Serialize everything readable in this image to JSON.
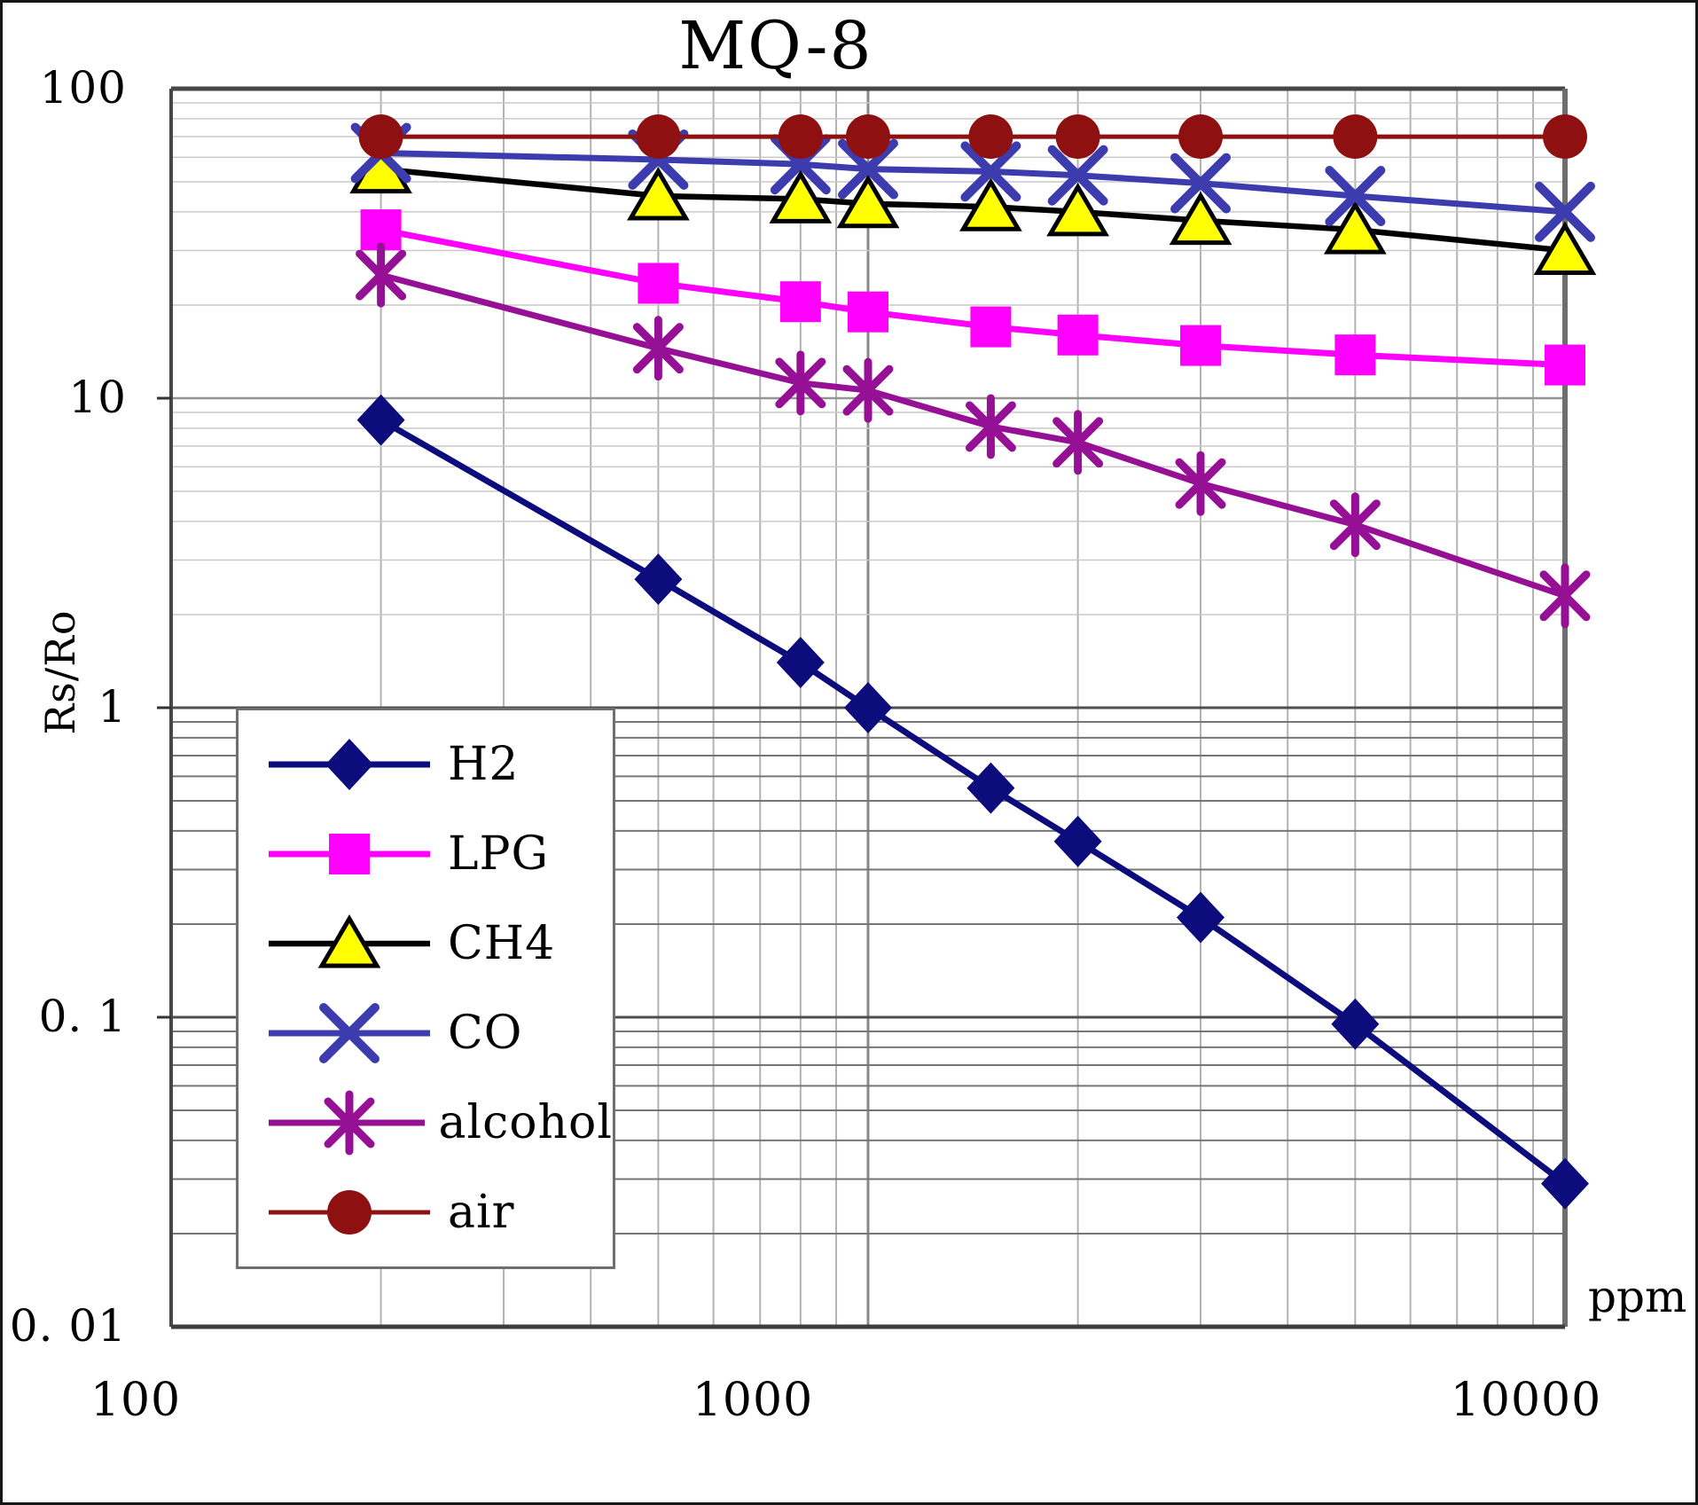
{
  "chart_data": {
    "type": "line",
    "title": "MQ-8",
    "ylabel": "Rs/Ro",
    "xlabel_unit": "ppm",
    "x_scale": "log",
    "y_scale": "log",
    "xlim": [
      100,
      10000
    ],
    "ylim": [
      0.01,
      100
    ],
    "grid": "log major+minor, dark minors below 1",
    "legend_position": "inside lower-left",
    "x_ticks": [
      {
        "value": 100,
        "label": "100"
      },
      {
        "value": 1000,
        "label": "1000"
      },
      {
        "value": 10000,
        "label": "10000"
      }
    ],
    "y_ticks": [
      {
        "value": 100,
        "label": "100"
      },
      {
        "value": 10,
        "label": "10"
      },
      {
        "value": 1,
        "label": "1"
      },
      {
        "value": 0.1,
        "label": "0. 1"
      },
      {
        "value": 0.01,
        "label": "0. 01"
      }
    ],
    "x": [
      200,
      500,
      800,
      1000,
      1500,
      2000,
      3000,
      5000,
      10000
    ],
    "series": [
      {
        "name": "H2",
        "color": "#0c0c7c",
        "marker": "diamond",
        "line_width": 7,
        "values": [
          8.5,
          2.6,
          1.4,
          1.0,
          0.55,
          0.37,
          0.21,
          0.095,
          0.029
        ]
      },
      {
        "name": "LPG",
        "color": "#ff00ff",
        "marker": "square",
        "line_width": 7,
        "values": [
          35,
          23.5,
          20.5,
          19,
          17,
          16,
          14.8,
          13.8,
          12.8
        ]
      },
      {
        "name": "CH4",
        "color": "#000000",
        "marker": "triangle",
        "marker_fill": "#ffff00",
        "line_width": 6.5,
        "values": [
          55,
          45,
          44,
          42.5,
          41.5,
          40,
          37.5,
          35,
          30
        ]
      },
      {
        "name": "CO",
        "color": "#3c3caf",
        "marker": "x",
        "line_width": 7,
        "values": [
          62,
          59,
          57,
          55,
          54,
          52.5,
          49.5,
          45,
          40
        ]
      },
      {
        "name": "alcohol",
        "color": "#951095",
        "marker": "asterisk",
        "line_width": 7,
        "values": [
          25,
          14.5,
          11.2,
          10.6,
          8.1,
          7.2,
          5.3,
          3.9,
          2.3
        ]
      },
      {
        "name": "air",
        "color": "#8e1010",
        "marker": "circle",
        "line_width": 5,
        "values": [
          70,
          70,
          70,
          70,
          70,
          70,
          70,
          70,
          70
        ]
      }
    ]
  }
}
